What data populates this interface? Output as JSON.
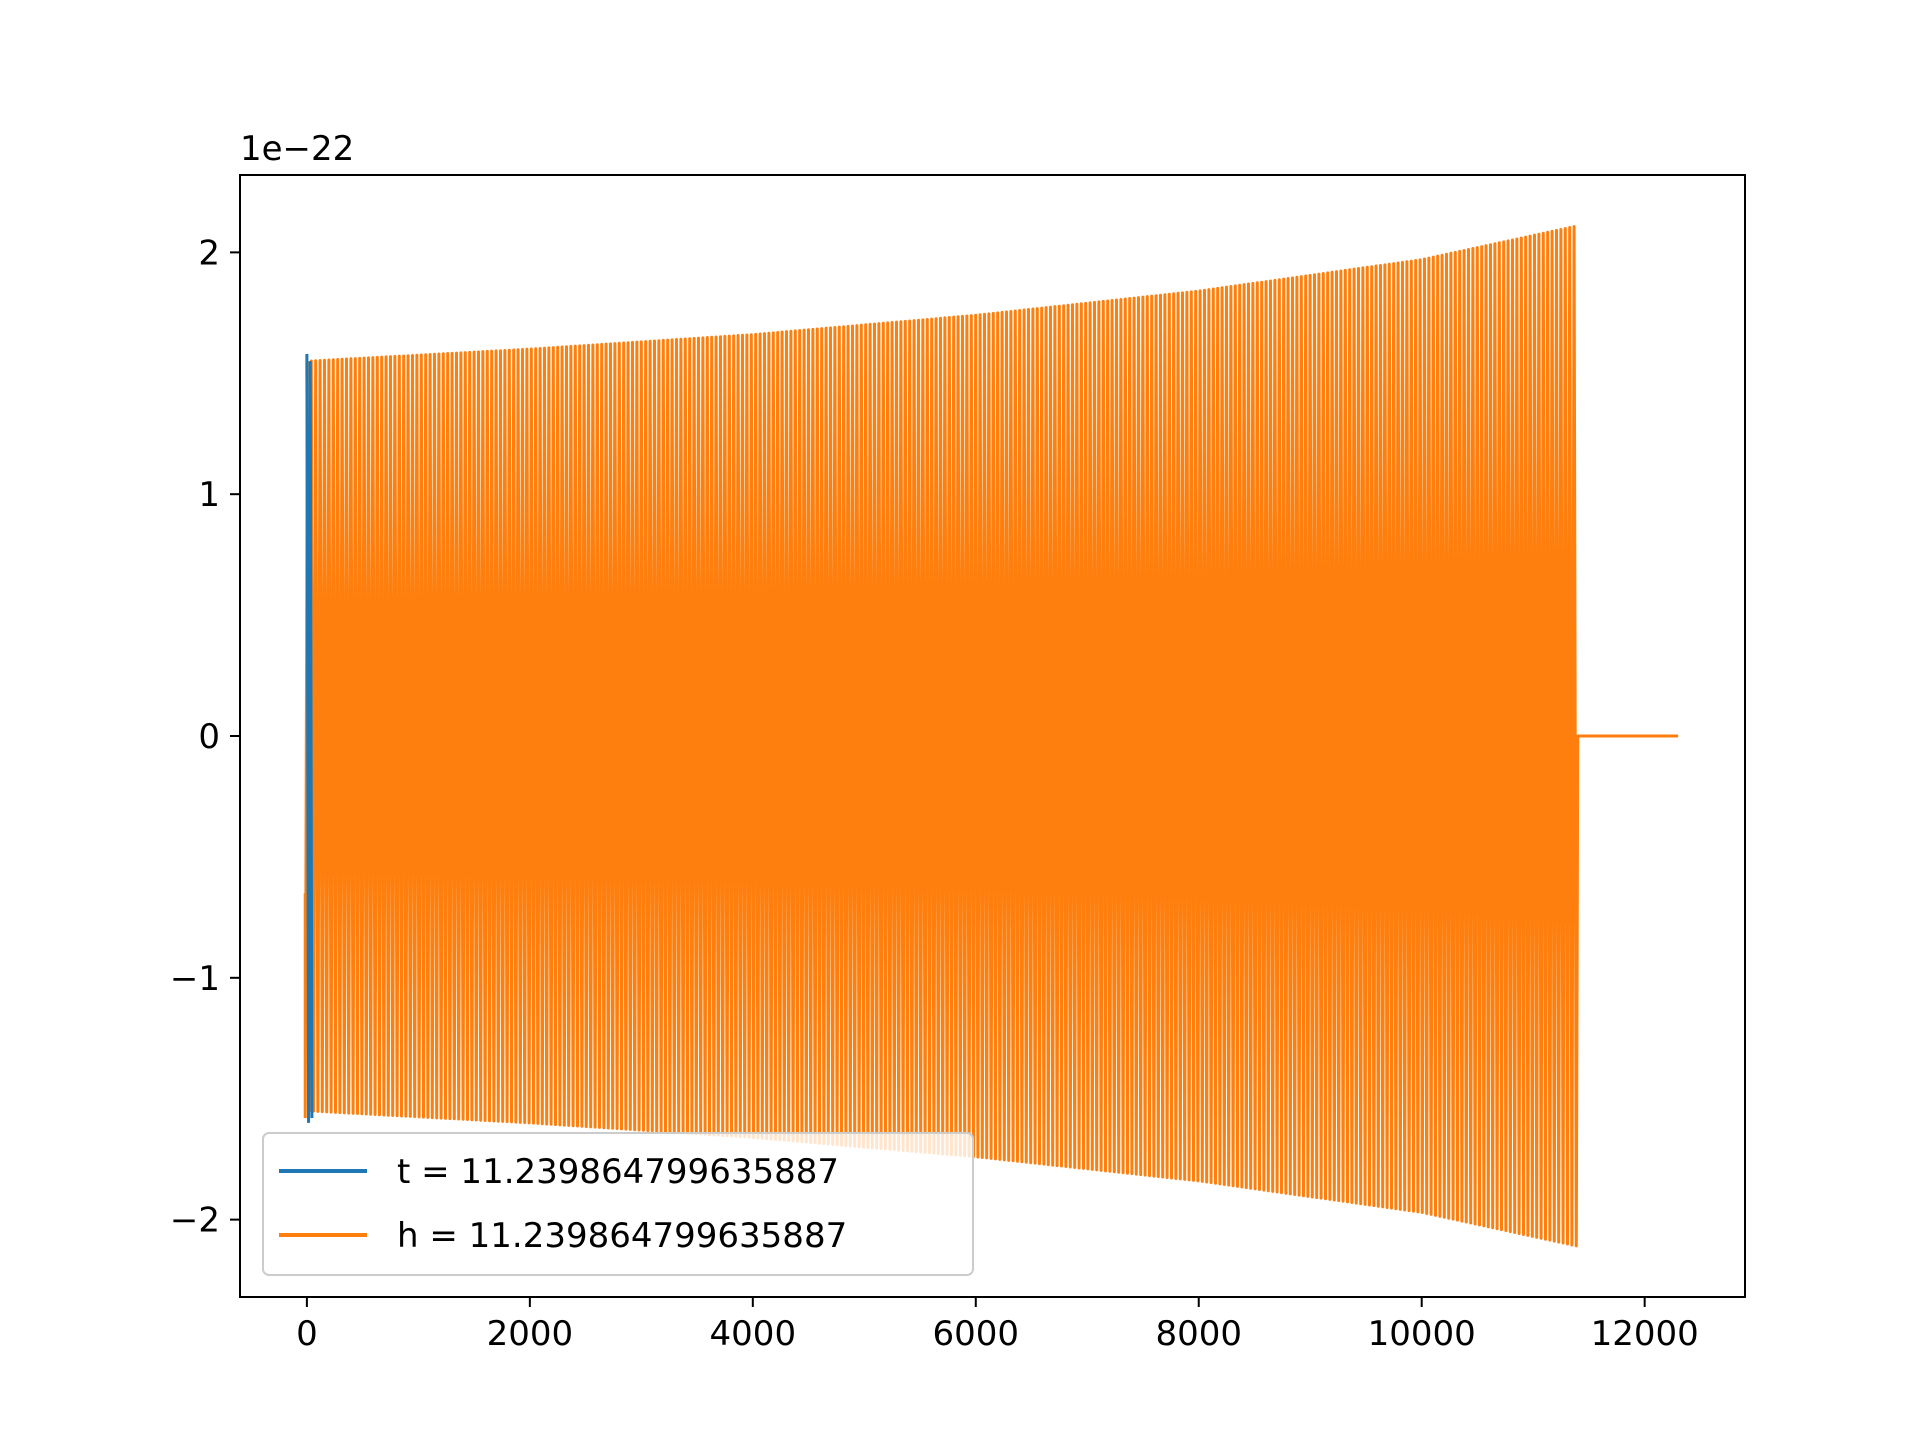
{
  "chart_data": {
    "type": "line",
    "title": "",
    "xlabel": "",
    "ylabel": "",
    "y_offset_text": "1e−22",
    "xlim": [
      -600,
      12900
    ],
    "ylim": [
      -2.32,
      2.32
    ],
    "xticks": [
      0,
      2000,
      4000,
      6000,
      8000,
      10000,
      12000
    ],
    "xtick_labels": [
      "0",
      "2000",
      "4000",
      "6000",
      "8000",
      "10000",
      "12000"
    ],
    "yticks": [
      -2,
      -1,
      0,
      1,
      2
    ],
    "ytick_labels": [
      "−2",
      "−1",
      "0",
      "1",
      "2"
    ],
    "grid": false,
    "legend_position": "lower-left",
    "series": [
      {
        "name": "t = 11.239864799635887",
        "color": "#1f77b4",
        "description": "short transient near x=0",
        "x": [
          0,
          15,
          30,
          45
        ],
        "y": [
          1.58,
          -1.6,
          1.55,
          -1.58
        ]
      },
      {
        "name": "h = 11.239864799635887",
        "color": "#ff7f0e",
        "oscillation": {
          "x_start": 0,
          "x_end": 11400,
          "amplitude_envelope": {
            "x": [
              0,
              2000,
              4000,
              6000,
              8000,
              10000,
              11400
            ],
            "y": [
              1.55,
              1.6,
              1.66,
              1.74,
              1.84,
              1.97,
              2.11
            ]
          }
        },
        "tail": {
          "x": [
            11400,
            12300
          ],
          "y": [
            0,
            0
          ]
        }
      }
    ]
  }
}
